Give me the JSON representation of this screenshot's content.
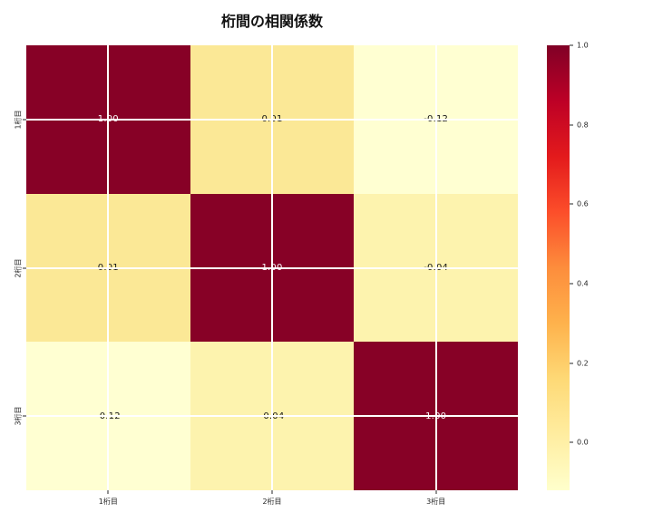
{
  "title": "桁間の相関係数",
  "colors": {
    "background": "#ffffff",
    "grid_line": "#ffffff",
    "tick": "#262626",
    "title_text": "#111111",
    "annotation_light": "#ffffff",
    "annotation_dark": "#151515"
  },
  "chart_data": {
    "type": "heatmap",
    "title": "桁間の相関係数",
    "x_categories": [
      "1桁目",
      "2桁目",
      "3桁目"
    ],
    "y_categories": [
      "1桁目",
      "2桁目",
      "3桁目"
    ],
    "matrix": [
      [
        1.0,
        0.01,
        -0.12
      ],
      [
        0.01,
        1.0,
        -0.04
      ],
      [
        -0.12,
        -0.04,
        1.0
      ]
    ],
    "cells": [
      {
        "row": "1桁目",
        "col": "1桁目",
        "label": "1.00",
        "bg": "#870126",
        "fg": "#ffffff"
      },
      {
        "row": "1桁目",
        "col": "2桁目",
        "label": "0.01",
        "bg": "#FBE896",
        "fg": "#151515"
      },
      {
        "row": "1桁目",
        "col": "3桁目",
        "label": "-0.12",
        "bg": "#FFFFD2",
        "fg": "#151515"
      },
      {
        "row": "2桁目",
        "col": "1桁目",
        "label": "0.01",
        "bg": "#FBE896",
        "fg": "#151515"
      },
      {
        "row": "2桁目",
        "col": "2桁目",
        "label": "1.00",
        "bg": "#870126",
        "fg": "#ffffff"
      },
      {
        "row": "2桁目",
        "col": "3桁目",
        "label": "-0.04",
        "bg": "#FDF3AE",
        "fg": "#151515"
      },
      {
        "row": "3桁目",
        "col": "1桁目",
        "label": "-0.12",
        "bg": "#FFFFD2",
        "fg": "#151515"
      },
      {
        "row": "3桁目",
        "col": "2桁目",
        "label": "-0.04",
        "bg": "#FDF3AE",
        "fg": "#151515"
      },
      {
        "row": "3桁目",
        "col": "3桁目",
        "label": "1.00",
        "bg": "#870126",
        "fg": "#ffffff"
      }
    ],
    "grid": "white lines through cell centers",
    "colormap": "YlOrRd",
    "vmin": -0.12,
    "vmax": 1.0,
    "colorbar": {
      "position": "right",
      "tick_labels": [
        "1.0",
        "0.8",
        "0.6",
        "0.4",
        "0.2",
        "0.0"
      ],
      "gradient_stops_bottom_to_top": [
        "#ffffcc",
        "#ffeda0",
        "#fed976",
        "#feb24c",
        "#fd8d3c",
        "#fc4e2a",
        "#e31a1c",
        "#bd0026",
        "#800026"
      ]
    }
  }
}
